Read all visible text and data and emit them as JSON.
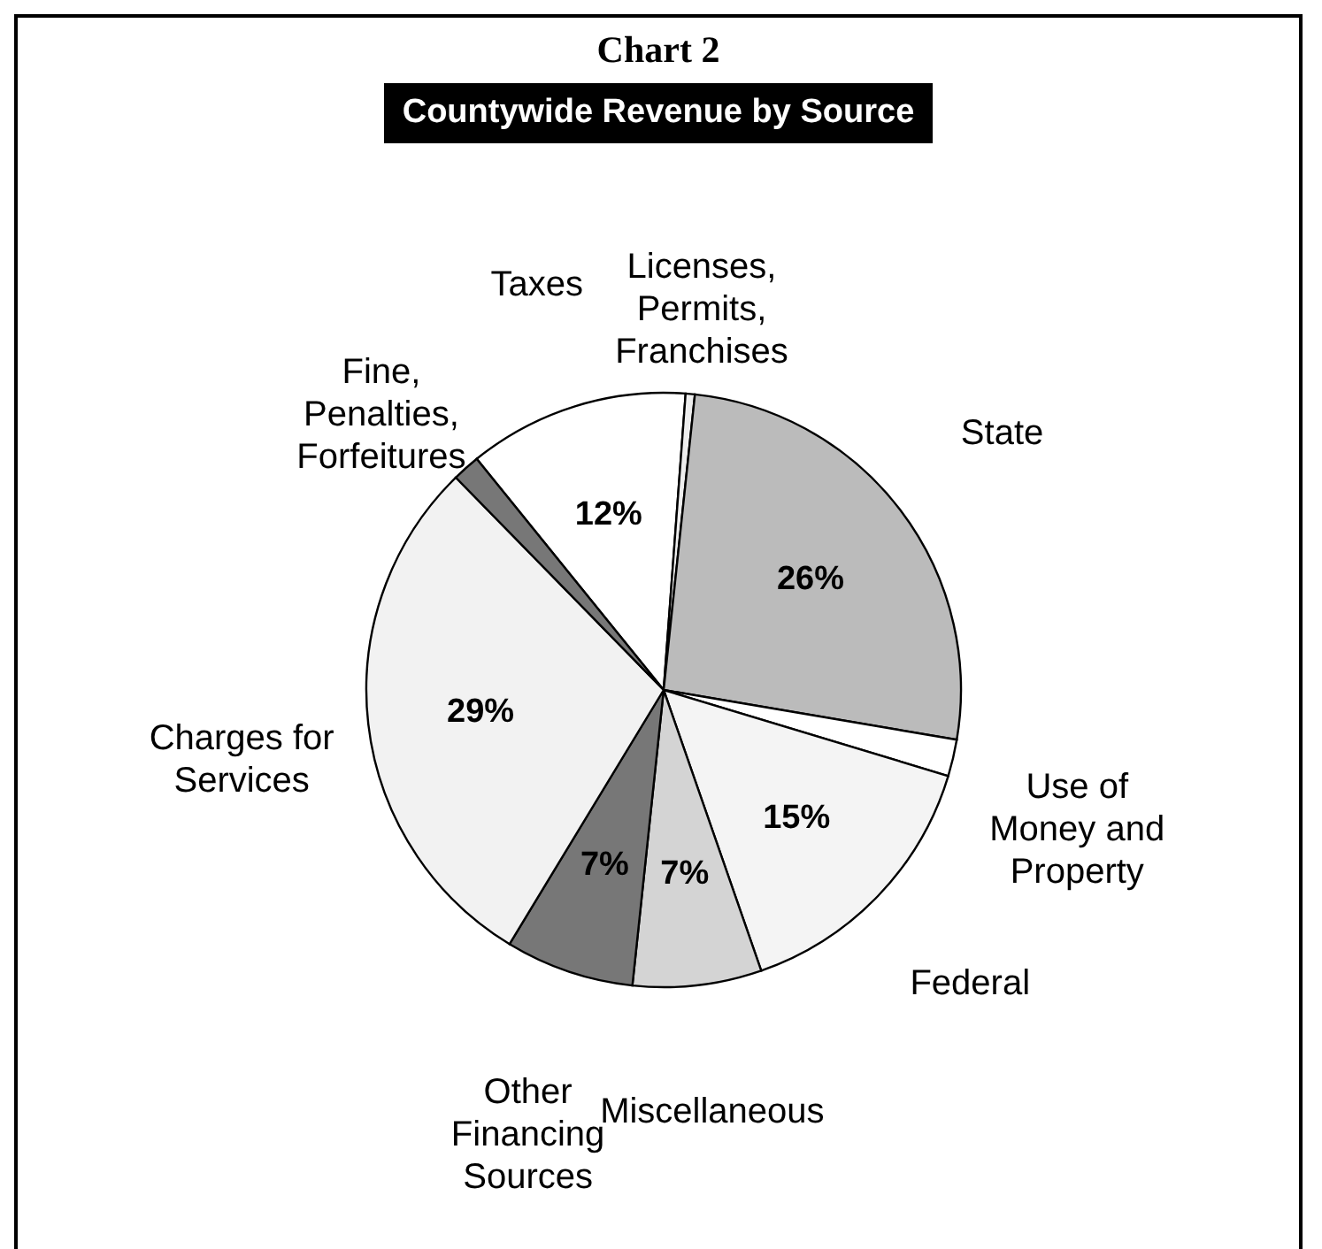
{
  "chart_data": {
    "type": "pie",
    "title": "Chart 2",
    "subtitle": "Countywide Revenue by Source",
    "categories": [
      "Taxes",
      "Licenses, Permits, Franchises",
      "State",
      "Use of Money and Property",
      "Federal",
      "Miscellaneous",
      "Other Financing Sources",
      "Charges for Services",
      "Fine, Penalties, Forfeitures"
    ],
    "values": [
      12,
      0.5,
      26,
      2,
      15,
      7,
      7,
      29,
      1.5
    ],
    "value_labels": [
      "12%",
      null,
      "26%",
      null,
      "15%",
      "7%",
      "7%",
      "29%",
      null
    ],
    "colors": [
      "#ffffff",
      "#eeeeee",
      "#bbbbbb",
      "#ffffff",
      "#f4f4f4",
      "#d4d4d4",
      "#777777",
      "#f2f2f2",
      "#777777"
    ],
    "legend": false
  }
}
